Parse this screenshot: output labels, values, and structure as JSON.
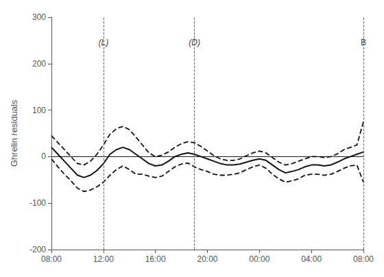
{
  "chart_data": {
    "type": "line",
    "ylabel": "Ghrelin residuals",
    "x": [
      0,
      0.5,
      1.0,
      1.5,
      2.0,
      2.5,
      3.0,
      3.5,
      4.0,
      4.5,
      5.0,
      5.5,
      6.0,
      6.5,
      7.0,
      7.5,
      8.0,
      8.5,
      9.0,
      9.5,
      10.0,
      10.5,
      11.0,
      11.5,
      12.0,
      12.5,
      13.0,
      13.5,
      14.0,
      14.5,
      15.0,
      15.5,
      16.0,
      16.5,
      17.0,
      17.5,
      18.0,
      18.5,
      19.0,
      19.5,
      20.0,
      20.5,
      21.0,
      21.5,
      22.0,
      22.5,
      23.0,
      23.5,
      24.0
    ],
    "series": [
      {
        "color": "#111111",
        "line_style": "solid",
        "values": [
          20,
          5,
          -10,
          -25,
          -40,
          -45,
          -40,
          -30,
          -15,
          5,
          15,
          20,
          15,
          5,
          -5,
          -15,
          -20,
          -18,
          -10,
          0,
          5,
          8,
          5,
          0,
          -5,
          -10,
          -15,
          -18,
          -18,
          -16,
          -12,
          -8,
          -5,
          -8,
          -18,
          -28,
          -35,
          -32,
          -28,
          -22,
          -18,
          -18,
          -20,
          -18,
          -12,
          -5,
          0,
          5,
          10
        ]
      },
      {
        "color": "#111111",
        "line_style": "dashed",
        "values": [
          45,
          30,
          15,
          0,
          -15,
          -18,
          -10,
          5,
          25,
          48,
          60,
          65,
          58,
          42,
          25,
          8,
          0,
          3,
          10,
          20,
          28,
          32,
          30,
          22,
          12,
          2,
          -5,
          -8,
          -8,
          -5,
          2,
          8,
          12,
          8,
          -2,
          -12,
          -18,
          -15,
          -10,
          -5,
          0,
          0,
          -2,
          0,
          6,
          15,
          20,
          25,
          75
        ]
      },
      {
        "color": "#111111",
        "line_style": "dashed",
        "values": [
          -5,
          -22,
          -38,
          -52,
          -68,
          -75,
          -72,
          -65,
          -55,
          -40,
          -28,
          -20,
          -28,
          -38,
          -38,
          -42,
          -45,
          -42,
          -32,
          -22,
          -16,
          -14,
          -22,
          -28,
          -32,
          -38,
          -40,
          -40,
          -38,
          -35,
          -28,
          -22,
          -18,
          -25,
          -38,
          -48,
          -55,
          -52,
          -48,
          -40,
          -38,
          -38,
          -40,
          -38,
          -32,
          -25,
          -20,
          -18,
          -55
        ]
      }
    ],
    "xlim": [
      0,
      24
    ],
    "xticks": [
      {
        "value": 0,
        "label": "08:00"
      },
      {
        "value": 4,
        "label": "12:00"
      },
      {
        "value": 8,
        "label": "16:00"
      },
      {
        "value": 12,
        "label": "20:00"
      },
      {
        "value": 16,
        "label": "00:00"
      },
      {
        "value": 20,
        "label": "04:00"
      },
      {
        "value": 24,
        "label": "08:00"
      }
    ],
    "ylim": [
      -200,
      300
    ],
    "yticks": [
      -200,
      -100,
      0,
      100,
      200,
      300
    ],
    "grid": false,
    "hlines": [
      0
    ],
    "annotations": [
      {
        "x": 4,
        "y": 255,
        "text": "(L)"
      },
      {
        "x": 11,
        "y": 255,
        "text": "(D)"
      },
      {
        "x": 24,
        "y": 255,
        "text": "B"
      }
    ]
  }
}
